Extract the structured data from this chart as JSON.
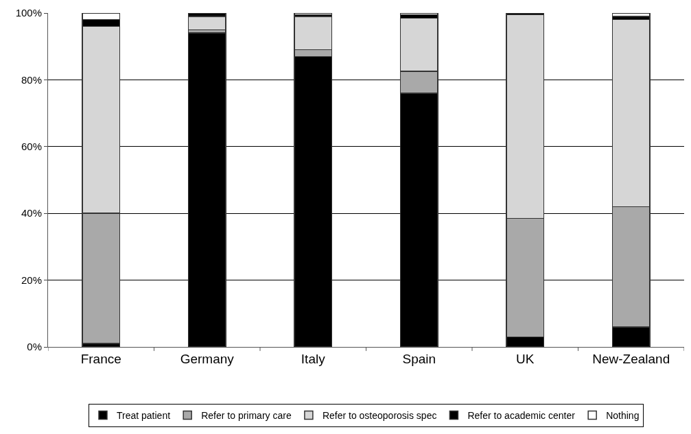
{
  "chart_data": {
    "type": "bar",
    "stacked": true,
    "categories": [
      "France",
      "Germany",
      "Italy",
      "Spain",
      "UK",
      "New-Zealand"
    ],
    "series": [
      {
        "name": "Treat patient",
        "color": "#000000",
        "values": [
          1,
          94,
          87,
          76,
          3,
          6
        ]
      },
      {
        "name": "Refer to primary care",
        "color": "#a9a9a9",
        "values": [
          39,
          1,
          2,
          6.5,
          35.5,
          36
        ]
      },
      {
        "name": "Refer to osteoporosis spec",
        "color": "#d6d6d6",
        "values": [
          56,
          4,
          10,
          16,
          61,
          56
        ]
      },
      {
        "name": "Refer to academic center",
        "color": "#000000",
        "values": [
          2,
          1,
          0.5,
          1,
          0.5,
          1
        ]
      },
      {
        "name": "Nothing",
        "color": "#ffffff",
        "values": [
          2,
          0,
          0.5,
          0.5,
          0,
          1
        ]
      }
    ],
    "ylim": [
      0,
      100
    ],
    "yticks": [
      {
        "value": 0,
        "label": "0%"
      },
      {
        "value": 20,
        "label": "20%"
      },
      {
        "value": 40,
        "label": "40%"
      },
      {
        "value": 60,
        "label": "60%"
      },
      {
        "value": 80,
        "label": "80%"
      },
      {
        "value": 100,
        "label": "100%"
      }
    ],
    "grid": "y",
    "legend": "bottom"
  }
}
